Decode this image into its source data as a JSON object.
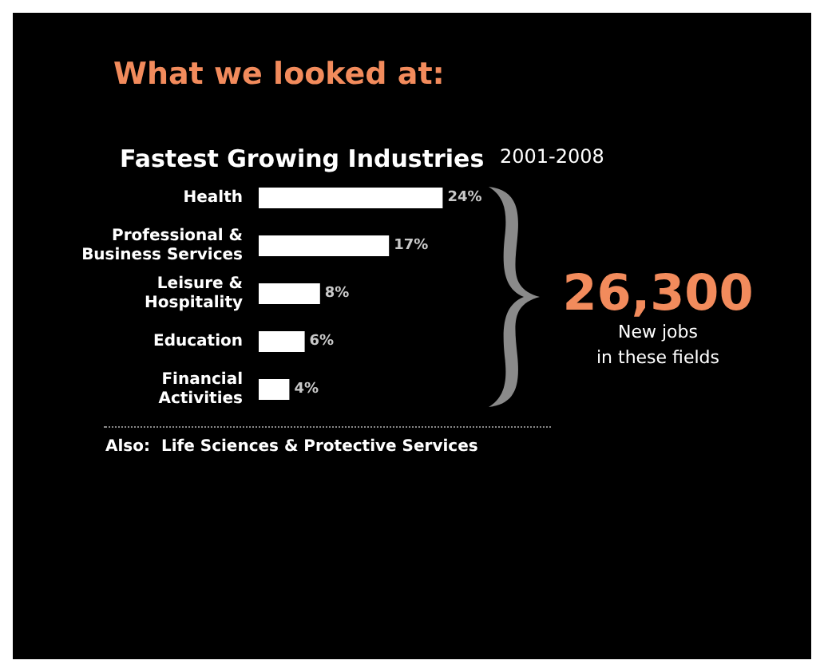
{
  "chart_data": {
    "type": "bar",
    "orientation": "horizontal",
    "title": "What we looked at:",
    "subtitle": "Fastest Growing Industries",
    "categories": [
      "Health",
      "Professional &\nBusiness Services",
      "Leisure &\nHospitality",
      "Education",
      "Financial\nActivities"
    ],
    "values": [
      24,
      17,
      8,
      6,
      4
    ],
    "value_labels": [
      "24%",
      "17%",
      "8%",
      "6%",
      "4%"
    ],
    "color": "#ffffff",
    "annotations": [
      "2001-2008",
      "26,300",
      "New jobs\nin these fields",
      "Also:  Life Sciences & Protective Services"
    ]
  }
}
